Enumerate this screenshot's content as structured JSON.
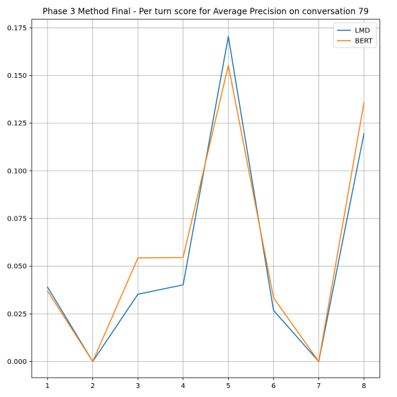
{
  "chart_data": {
    "type": "line",
    "title": "Phase 3 Method Final - Per turn score for Average Precision on conversation 79",
    "xlabel": "",
    "ylabel": "",
    "x": [
      1,
      2,
      3,
      4,
      5,
      6,
      7,
      8
    ],
    "xticks": [
      "1",
      "2",
      "3",
      "4",
      "5",
      "6",
      "7",
      "8"
    ],
    "yticks": [
      "0.000",
      "0.025",
      "0.050",
      "0.075",
      "0.100",
      "0.125",
      "0.150",
      "0.175"
    ],
    "xlim": [
      0.65,
      8.35
    ],
    "ylim": [
      -0.0085,
      0.1795
    ],
    "grid": true,
    "legend_position": "top-right",
    "series": [
      {
        "name": "LMD",
        "color": "#1f77b4",
        "values": [
          0.039,
          0.0,
          0.0353,
          0.0402,
          0.1705,
          0.0268,
          0.0,
          0.1195
        ]
      },
      {
        "name": "BERT",
        "color": "#ff7f0e",
        "values": [
          0.037,
          0.0,
          0.0543,
          0.0546,
          0.1553,
          0.0334,
          0.0,
          0.1358
        ]
      }
    ]
  }
}
